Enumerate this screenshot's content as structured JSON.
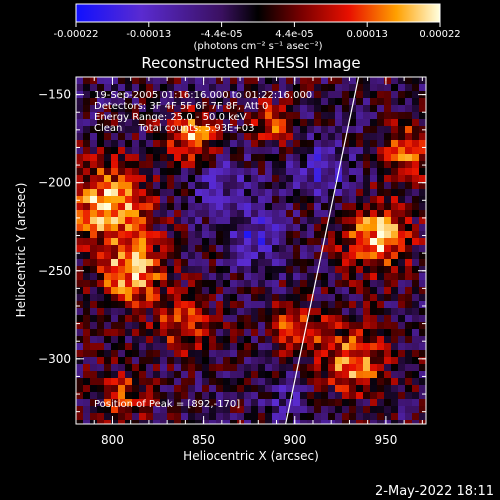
{
  "colorbar": {
    "ticks": [
      "-0.00022",
      "-0.00013",
      "-4.4e-05",
      "4.4e-05",
      "0.00013",
      "0.00022"
    ],
    "units": "(photons cm⁻² s⁻¹ asec⁻²)"
  },
  "chart_data": {
    "type": "heatmap",
    "title": "Reconstructed RHESSI Image",
    "xlabel": "Heliocentric X (arcsec)",
    "ylabel": "Heliocentric Y (arcsec)",
    "xlim": [
      780,
      972
    ],
    "ylim": [
      -337,
      -140
    ],
    "xticks": [
      800,
      850,
      900,
      950
    ],
    "yticks": [
      -150,
      -200,
      -250,
      -300
    ],
    "xtick_labels": [
      "800",
      "850",
      "900",
      "950"
    ],
    "ytick_labels": [
      "−150",
      "−200",
      "−250",
      "−300"
    ],
    "color_range": [
      -0.00022,
      0.00022
    ],
    "limb_line": [
      [
        895,
        -337
      ],
      [
        935,
        -140
      ]
    ],
    "annotations": [
      "19-Sep-2005 01:16:16.000 to 01:22:16.000",
      "Detectors: 3F 4F 5F 6F 7F 8F, Att 0",
      "Energy Range: 25.0 - 50.0 keV",
      "Clean     Total counts: 5.93E+03"
    ],
    "peak_label": "Position of Peak = [892,-170]"
  },
  "footer": {
    "timestamp": "2-May-2022 18:11"
  }
}
